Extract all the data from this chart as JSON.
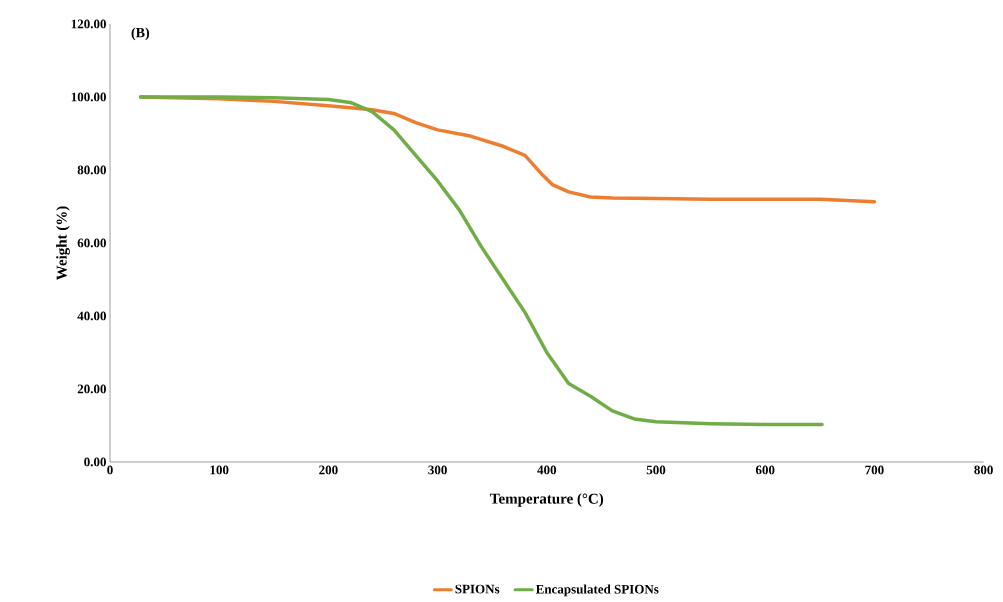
{
  "chart_data": {
    "type": "line",
    "title": "(B)",
    "xlabel": "Temperature  (°C)",
    "ylabel": "Weight (%)",
    "xlim": [
      0,
      800
    ],
    "xticks": [
      0,
      100,
      200,
      300,
      400,
      500,
      600,
      700,
      800
    ],
    "ylim": [
      0,
      120
    ],
    "yticks": [
      {
        "value": 0,
        "label": "0.00"
      },
      {
        "value": 20,
        "label": "20.00"
      },
      {
        "value": 40,
        "label": "40.00"
      },
      {
        "value": 60,
        "label": "60.00"
      },
      {
        "value": 80,
        "label": "80.00"
      },
      {
        "value": 100,
        "label": "100.00"
      },
      {
        "value": 120,
        "label": "120.00"
      }
    ],
    "grid": false,
    "legend": "bottom",
    "marker": "none",
    "line_style": "solid",
    "series": [
      {
        "name": "SPIONs",
        "color": "#ed7d31",
        "x": [
          28,
          100,
          150,
          200,
          240,
          260,
          280,
          300,
          330,
          360,
          380,
          395,
          405,
          420,
          440,
          460,
          500,
          550,
          600,
          650,
          670,
          700
        ],
        "values": [
          100,
          99.5,
          98.8,
          97.6,
          96.5,
          95.5,
          93,
          91,
          89.3,
          86.5,
          84,
          79,
          76,
          74,
          72.6,
          72.3,
          72.2,
          72,
          72,
          72,
          71.7,
          71.3
        ]
      },
      {
        "name": "Encapsulated SPIONs",
        "color": "#70ad47",
        "x": [
          28,
          100,
          150,
          200,
          220,
          240,
          260,
          280,
          300,
          320,
          340,
          360,
          380,
          400,
          420,
          440,
          460,
          480,
          500,
          550,
          600,
          652
        ],
        "values": [
          100,
          100,
          99.8,
          99.3,
          98.5,
          96,
          91,
          84,
          77,
          69,
          59,
          50,
          41,
          30,
          21.5,
          18,
          14,
          11.8,
          11,
          10.5,
          10.3,
          10.3
        ]
      }
    ]
  }
}
